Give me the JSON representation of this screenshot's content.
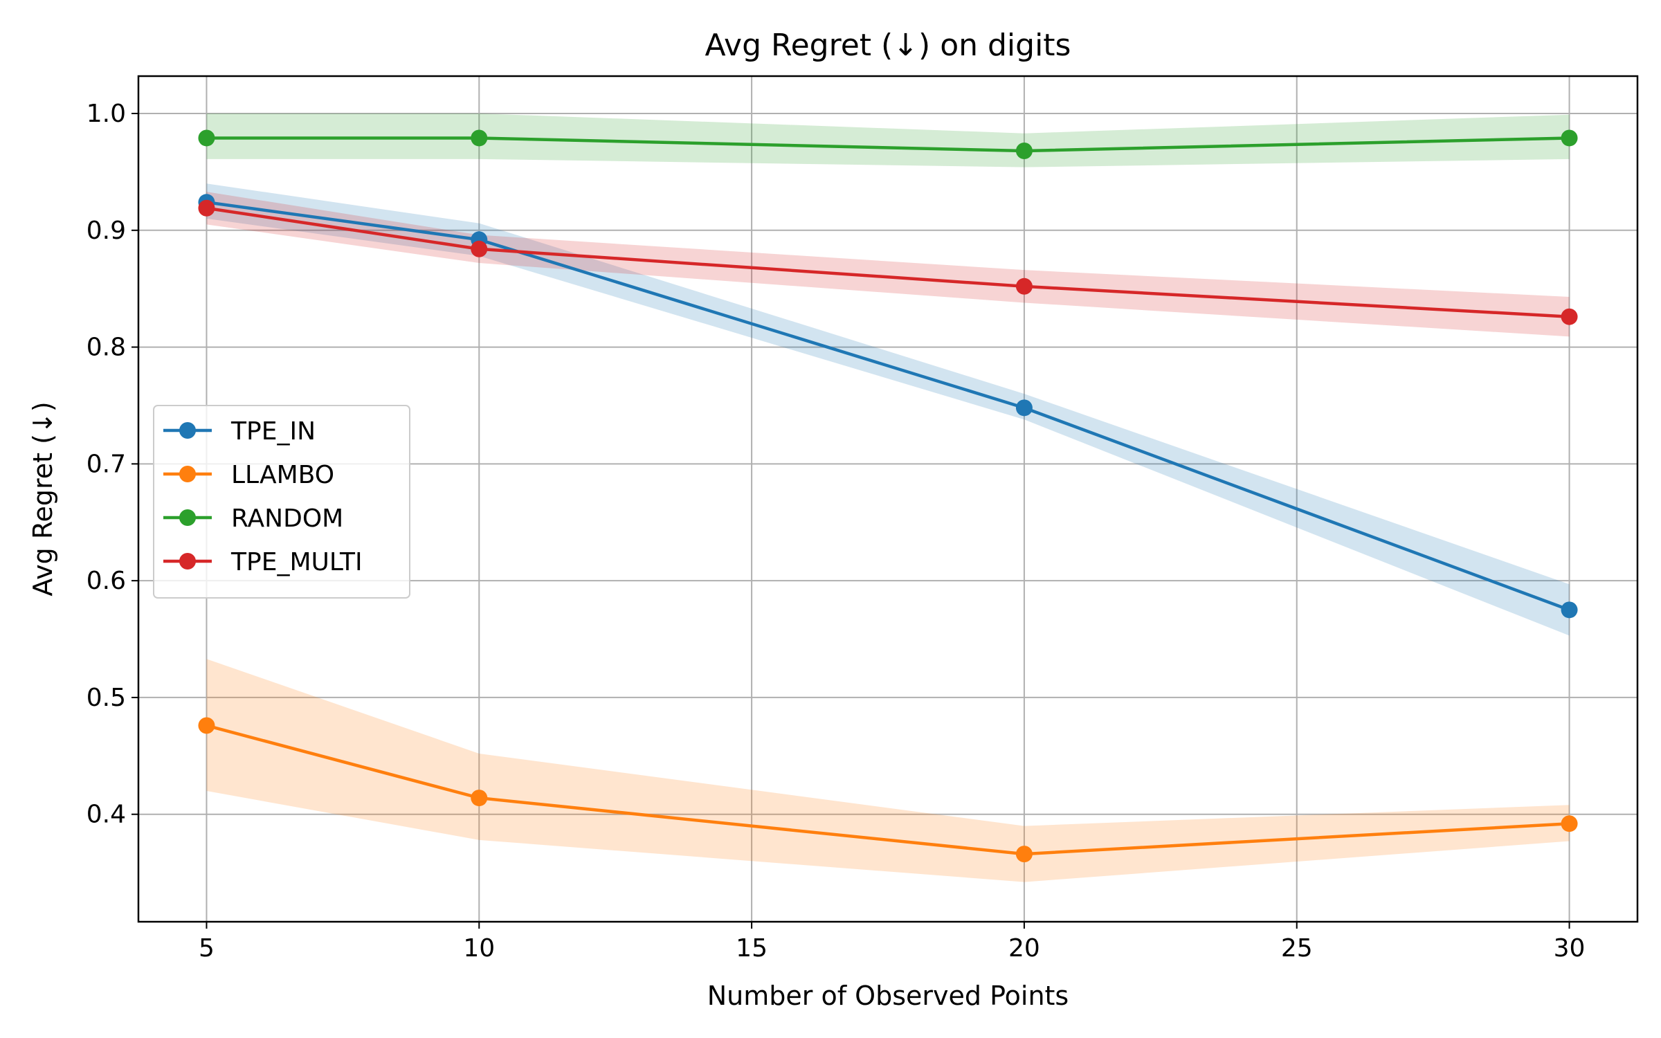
{
  "chart_data": {
    "type": "line",
    "title": "Avg Regret (↓) on digits",
    "xlabel": "Number of Observed Points",
    "ylabel": "Avg Regret (↓)",
    "x": [
      5,
      10,
      20,
      30
    ],
    "xlim": [
      3.75,
      31.25
    ],
    "ylim": [
      0.308,
      1.032
    ],
    "xticks": [
      "5",
      "10",
      "15",
      "20",
      "25",
      "30"
    ],
    "yticks": [
      "0.4",
      "0.5",
      "0.6",
      "0.7",
      "0.8",
      "0.9",
      "1.0"
    ],
    "grid": true,
    "legend_position": "center-left",
    "series": [
      {
        "name": "TPE_IN",
        "color": "#1f77b4",
        "values": [
          0.924,
          0.892,
          0.748,
          0.575
        ],
        "lower": [
          0.91,
          0.878,
          0.738,
          0.553
        ],
        "upper": [
          0.94,
          0.906,
          0.76,
          0.597
        ]
      },
      {
        "name": "LLAMBO",
        "color": "#ff7f0e",
        "values": [
          0.476,
          0.414,
          0.366,
          0.392
        ],
        "lower": [
          0.42,
          0.378,
          0.342,
          0.377
        ],
        "upper": [
          0.533,
          0.452,
          0.39,
          0.408
        ]
      },
      {
        "name": "RANDOM",
        "color": "#2ca02c",
        "values": [
          0.979,
          0.979,
          0.968,
          0.979
        ],
        "lower": [
          0.961,
          0.961,
          0.954,
          0.961
        ],
        "upper": [
          1.0,
          1.0,
          0.983,
          0.999
        ]
      },
      {
        "name": "TPE_MULTI",
        "color": "#d62728",
        "values": [
          0.919,
          0.884,
          0.852,
          0.826
        ],
        "lower": [
          0.905,
          0.872,
          0.838,
          0.809
        ],
        "upper": [
          0.933,
          0.896,
          0.866,
          0.843
        ]
      }
    ]
  }
}
